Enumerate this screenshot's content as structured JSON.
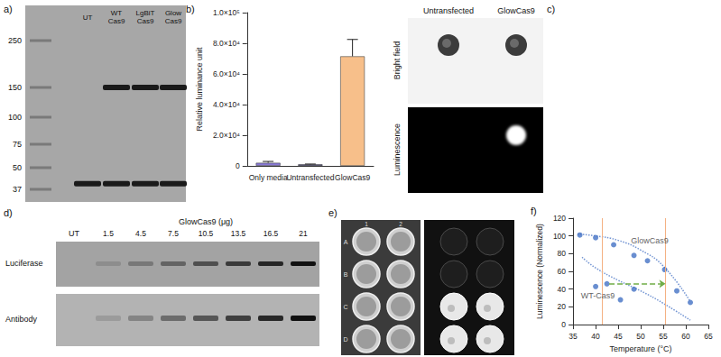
{
  "panel_labels": {
    "a": "a)",
    "b": "b)",
    "c": "c)",
    "d": "d)",
    "e": "e)",
    "f": "f)"
  },
  "blot_a": {
    "lanes": [
      "UT",
      "WT Cas9",
      "LgBiT Cas9",
      "Glow Cas9"
    ],
    "markers": [
      250,
      150,
      100,
      75,
      50,
      37
    ],
    "bands": [
      {
        "kda": 150,
        "lanes": [
          "WT Cas9",
          "LgBiT Cas9",
          "Glow Cas9"
        ]
      },
      {
        "kda": 40,
        "lanes": [
          "UT",
          "WT Cas9",
          "LgBiT Cas9",
          "Glow Cas9"
        ]
      }
    ]
  },
  "panel_c": {
    "columns": [
      "Untransfected",
      "GlowCas9"
    ],
    "rows": [
      "Bright field",
      "Luminescence"
    ],
    "signal": [
      "GlowCas9"
    ]
  },
  "blot_d": {
    "untreated": "UT",
    "group": "GlowCas9 (μg)",
    "doses": [
      1.5,
      4.5,
      7.5,
      10.5,
      13.5,
      16.5,
      21
    ],
    "rows": [
      "Luciferase",
      "Antibody"
    ]
  },
  "plate_e": {
    "rows": [
      "A",
      "B",
      "C",
      "D"
    ],
    "columns": [
      "1",
      "2"
    ],
    "luminescent_rows": [
      "C",
      "D"
    ]
  },
  "chart_data": [
    {
      "type": "bar",
      "ylabel": "Relative luminance unit",
      "categories": [
        "Only media",
        "Untransfected",
        "GlowCas9"
      ],
      "values": [
        2000,
        1000,
        71500
      ],
      "errors": [
        900,
        200,
        11000
      ],
      "colors": [
        "#8878d8",
        "#2e2a66",
        "#f7bf8a"
      ],
      "ylim": [
        0,
        100000
      ],
      "yticks": [
        0,
        {
          "value": 20000,
          "label": "2.0×10⁴"
        },
        {
          "value": 40000,
          "label": "4.0×10⁴"
        },
        {
          "value": 60000,
          "label": "6.0×10⁴"
        },
        {
          "value": 80000,
          "label": "8.0×10⁴"
        },
        {
          "value": 100000,
          "label": "1.0×10⁵"
        }
      ],
      "grid": false
    },
    {
      "type": "scatter",
      "xlabel": "Temperature (°C)",
      "ylabel": "Luminescence (Normalized)",
      "series": [
        {
          "name": "GlowCas9",
          "color": "#4472c4",
          "marker": "circle",
          "x": [
            36.5,
            40,
            44,
            48.5,
            51.5,
            55.3,
            58,
            61
          ],
          "values": [
            101,
            98,
            90,
            78,
            72,
            62,
            38,
            25
          ],
          "label_at": [
            52,
            95
          ],
          "trend": {
            "x": [
              36,
              40,
              45,
              50,
              55,
              61
            ],
            "values": [
              102,
              100,
              95,
              84,
              66,
              26
            ],
            "line_style": "dotted"
          }
        },
        {
          "name": "WT-Cas9",
          "color": "#4472c4",
          "marker": "circle",
          "x": [
            40,
            42.5,
            45.5,
            48.5
          ],
          "values": [
            43,
            46,
            28,
            40
          ],
          "label_at": [
            40.5,
            33
          ],
          "trend": {
            "x": [
              37,
              40,
              45,
              50,
              55,
              61
            ],
            "values": [
              76,
              64,
              50,
              38,
              24,
              5
            ],
            "line_style": "dotted"
          }
        }
      ],
      "vlines": {
        "values": [
          41.5,
          55.5
        ],
        "color": "#f4b183"
      },
      "arrow": {
        "from": [
          43,
          46
        ],
        "to": [
          55.5,
          46
        ],
        "color": "#70ad47",
        "line_style": "dashed"
      },
      "xlim": [
        35,
        65
      ],
      "xticks": [
        35,
        40,
        45,
        50,
        55,
        60,
        65
      ],
      "ylim": [
        0,
        120
      ],
      "yticks": [
        0,
        20,
        40,
        60,
        80,
        100,
        120
      ],
      "grid": false
    }
  ]
}
